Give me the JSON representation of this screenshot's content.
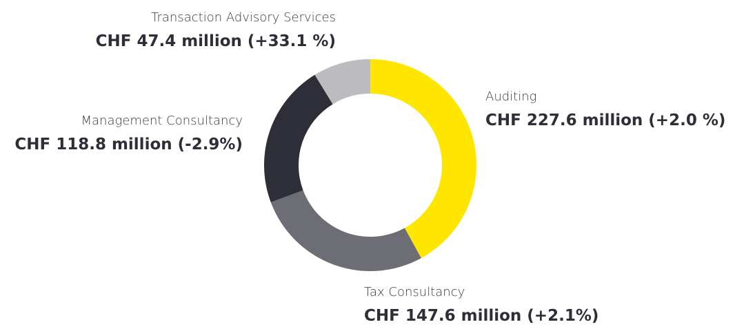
{
  "chart_data": {
    "type": "donut",
    "categories": [
      "Auditing",
      "Tax Consultancy",
      "Management Consultancy",
      "Transaction Advisory Services"
    ],
    "values": [
      227.6,
      147.6,
      118.8,
      47.4
    ],
    "value_labels": [
      "CHF 227.6 million (+2.0 %)",
      "CHF 147.6 million (+2.1%)",
      "CHF 118.8 million (-2.9%)",
      "CHF 47.4 million (+33.1 %)"
    ],
    "colors": [
      "#ffe600",
      "#6d6e75",
      "#2e2e38",
      "#bcbcc0"
    ]
  }
}
